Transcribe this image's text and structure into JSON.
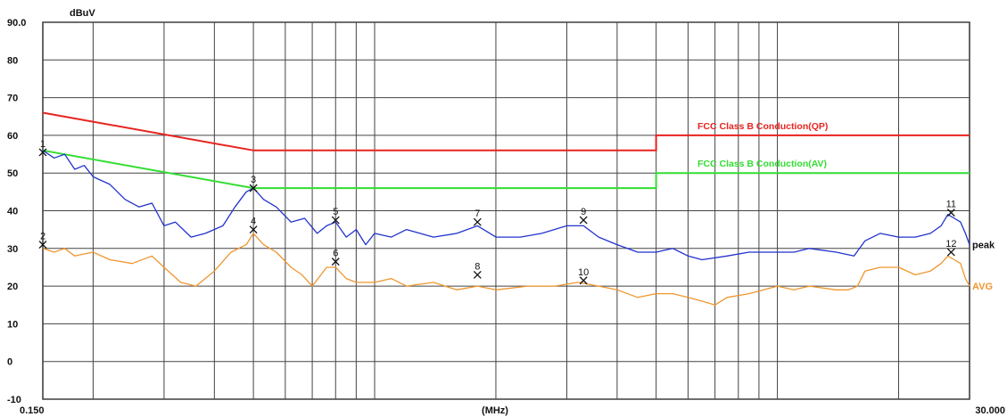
{
  "chart_data": {
    "type": "line",
    "ylabel": "dBuV",
    "xlabel": "(MHz)",
    "xscale": "log",
    "xlim": [
      0.15,
      30
    ],
    "ylim": [
      -10,
      90
    ],
    "x_tick_labels": {
      "min": "0.150",
      "max": "30.000"
    },
    "y_ticks": [
      {
        "value": 90,
        "label": "90.0"
      },
      {
        "value": 80,
        "label": "80"
      },
      {
        "value": 70,
        "label": "70"
      },
      {
        "value": 60,
        "label": "60"
      },
      {
        "value": 50,
        "label": "50"
      },
      {
        "value": 40,
        "label": "40"
      },
      {
        "value": 30,
        "label": "30"
      },
      {
        "value": 20,
        "label": "20"
      },
      {
        "value": 10,
        "label": "10"
      },
      {
        "value": 0,
        "label": "0"
      },
      {
        "value": -10,
        "label": "-10"
      }
    ],
    "grid": true,
    "limits": [
      {
        "name": "FCC Class B Conduction(QP)",
        "color": "#e8231f",
        "points": [
          [
            0.15,
            66
          ],
          [
            0.5,
            56
          ],
          [
            5,
            56
          ],
          [
            5,
            60
          ],
          [
            30,
            60
          ]
        ]
      },
      {
        "name": "FCC Class B Conduction(AV)",
        "color": "#33dd33",
        "points": [
          [
            0.15,
            56
          ],
          [
            0.5,
            46
          ],
          [
            5,
            46
          ],
          [
            5,
            50
          ],
          [
            30,
            50
          ]
        ]
      }
    ],
    "series": [
      {
        "name": "peak",
        "color": "#2233cc",
        "points": [
          [
            0.15,
            56
          ],
          [
            0.16,
            54
          ],
          [
            0.17,
            55
          ],
          [
            0.18,
            51
          ],
          [
            0.19,
            52
          ],
          [
            0.2,
            49
          ],
          [
            0.22,
            47
          ],
          [
            0.24,
            43
          ],
          [
            0.26,
            41
          ],
          [
            0.28,
            42
          ],
          [
            0.3,
            36
          ],
          [
            0.32,
            37
          ],
          [
            0.35,
            33
          ],
          [
            0.38,
            34
          ],
          [
            0.42,
            36
          ],
          [
            0.45,
            41
          ],
          [
            0.48,
            45
          ],
          [
            0.5,
            46
          ],
          [
            0.53,
            43
          ],
          [
            0.57,
            41
          ],
          [
            0.62,
            37
          ],
          [
            0.67,
            38
          ],
          [
            0.72,
            34
          ],
          [
            0.76,
            36
          ],
          [
            0.8,
            37
          ],
          [
            0.85,
            33
          ],
          [
            0.9,
            35
          ],
          [
            0.95,
            31
          ],
          [
            1.0,
            34
          ],
          [
            1.1,
            33
          ],
          [
            1.2,
            35
          ],
          [
            1.4,
            33
          ],
          [
            1.6,
            34
          ],
          [
            1.8,
            36
          ],
          [
            2.0,
            33
          ],
          [
            2.3,
            33
          ],
          [
            2.6,
            34
          ],
          [
            3.0,
            36
          ],
          [
            3.3,
            36
          ],
          [
            3.6,
            33
          ],
          [
            4.0,
            31
          ],
          [
            4.5,
            29
          ],
          [
            5.0,
            29
          ],
          [
            5.5,
            30
          ],
          [
            6.0,
            28
          ],
          [
            6.5,
            27
          ],
          [
            7.5,
            28
          ],
          [
            8.5,
            29
          ],
          [
            10,
            29
          ],
          [
            11,
            29
          ],
          [
            12,
            30
          ],
          [
            14,
            29
          ],
          [
            15.5,
            28
          ],
          [
            16.5,
            32
          ],
          [
            18,
            34
          ],
          [
            20,
            33
          ],
          [
            22,
            33
          ],
          [
            24,
            34
          ],
          [
            25.5,
            36
          ],
          [
            26.5,
            39
          ],
          [
            27.5,
            38
          ],
          [
            28.5,
            37
          ],
          [
            29.3,
            34
          ],
          [
            30,
            31
          ]
        ]
      },
      {
        "name": "AVG",
        "color": "#f0962e",
        "points": [
          [
            0.15,
            30
          ],
          [
            0.16,
            29
          ],
          [
            0.17,
            30
          ],
          [
            0.18,
            28
          ],
          [
            0.2,
            29
          ],
          [
            0.22,
            27
          ],
          [
            0.25,
            26
          ],
          [
            0.28,
            28
          ],
          [
            0.3,
            25
          ],
          [
            0.33,
            21
          ],
          [
            0.36,
            20
          ],
          [
            0.4,
            24
          ],
          [
            0.44,
            29
          ],
          [
            0.48,
            31
          ],
          [
            0.5,
            34
          ],
          [
            0.53,
            31
          ],
          [
            0.57,
            29
          ],
          [
            0.62,
            25
          ],
          [
            0.66,
            23
          ],
          [
            0.7,
            20
          ],
          [
            0.76,
            25
          ],
          [
            0.8,
            25
          ],
          [
            0.85,
            22
          ],
          [
            0.9,
            21
          ],
          [
            1.0,
            21
          ],
          [
            1.1,
            22
          ],
          [
            1.2,
            20
          ],
          [
            1.4,
            21
          ],
          [
            1.6,
            19
          ],
          [
            1.8,
            20
          ],
          [
            2.0,
            19
          ],
          [
            2.4,
            20
          ],
          [
            2.8,
            20
          ],
          [
            3.2,
            21
          ],
          [
            3.6,
            20
          ],
          [
            4.0,
            19
          ],
          [
            4.5,
            17
          ],
          [
            5.0,
            18
          ],
          [
            5.5,
            18
          ],
          [
            6.0,
            17
          ],
          [
            6.5,
            16
          ],
          [
            7.0,
            15
          ],
          [
            7.5,
            17
          ],
          [
            8.5,
            18
          ],
          [
            10,
            20
          ],
          [
            11,
            19
          ],
          [
            12,
            20
          ],
          [
            14,
            19
          ],
          [
            15,
            19
          ],
          [
            15.8,
            20
          ],
          [
            16.5,
            24
          ],
          [
            18,
            25
          ],
          [
            20,
            25
          ],
          [
            22,
            23
          ],
          [
            24,
            24
          ],
          [
            25.5,
            26
          ],
          [
            26.5,
            28
          ],
          [
            27.5,
            27
          ],
          [
            28.5,
            26
          ],
          [
            29.3,
            22
          ],
          [
            30,
            20
          ]
        ]
      }
    ],
    "markers": [
      {
        "label": "1",
        "x": 0.15,
        "y": 55.5
      },
      {
        "label": "2",
        "x": 0.15,
        "y": 31
      },
      {
        "label": "3",
        "x": 0.5,
        "y": 46
      },
      {
        "label": "4",
        "x": 0.5,
        "y": 35
      },
      {
        "label": "5",
        "x": 0.8,
        "y": 37.5
      },
      {
        "label": "6",
        "x": 0.8,
        "y": 26.5
      },
      {
        "label": "7",
        "x": 1.8,
        "y": 37
      },
      {
        "label": "8",
        "x": 1.8,
        "y": 23
      },
      {
        "label": "9",
        "x": 3.3,
        "y": 37.5
      },
      {
        "label": "10",
        "x": 3.3,
        "y": 21.5
      },
      {
        "label": "11",
        "x": 27,
        "y": 39.5
      },
      {
        "label": "12",
        "x": 27,
        "y": 29
      }
    ]
  }
}
